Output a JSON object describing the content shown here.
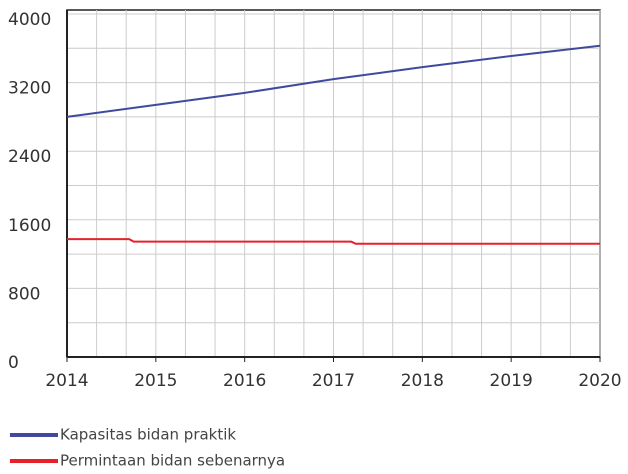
{
  "chart_data": {
    "type": "line",
    "xlim": [
      2014,
      2020
    ],
    "xticks": [
      2014,
      2015,
      2016,
      2017,
      2018,
      2019,
      2020
    ],
    "ylim": [
      0,
      4000
    ],
    "yticks": [
      0,
      800,
      1600,
      2400,
      3200,
      4000
    ],
    "grid": true,
    "legend": "bottom",
    "series": [
      {
        "name": "Kapasitas bidan praktik",
        "color": "#3f4a9e",
        "x": [
          2014,
          2015,
          2016,
          2017,
          2018,
          2019,
          2020
        ],
        "values": [
          2800,
          2940,
          3080,
          3240,
          3380,
          3510,
          3630
        ]
      },
      {
        "name": "Permintaan bidan sebenarnya",
        "color": "#e8202a",
        "x": [
          2014,
          2014.7,
          2014.75,
          2017.2,
          2017.25,
          2020
        ],
        "values": [
          1375,
          1375,
          1345,
          1345,
          1320,
          1320
        ]
      }
    ]
  }
}
